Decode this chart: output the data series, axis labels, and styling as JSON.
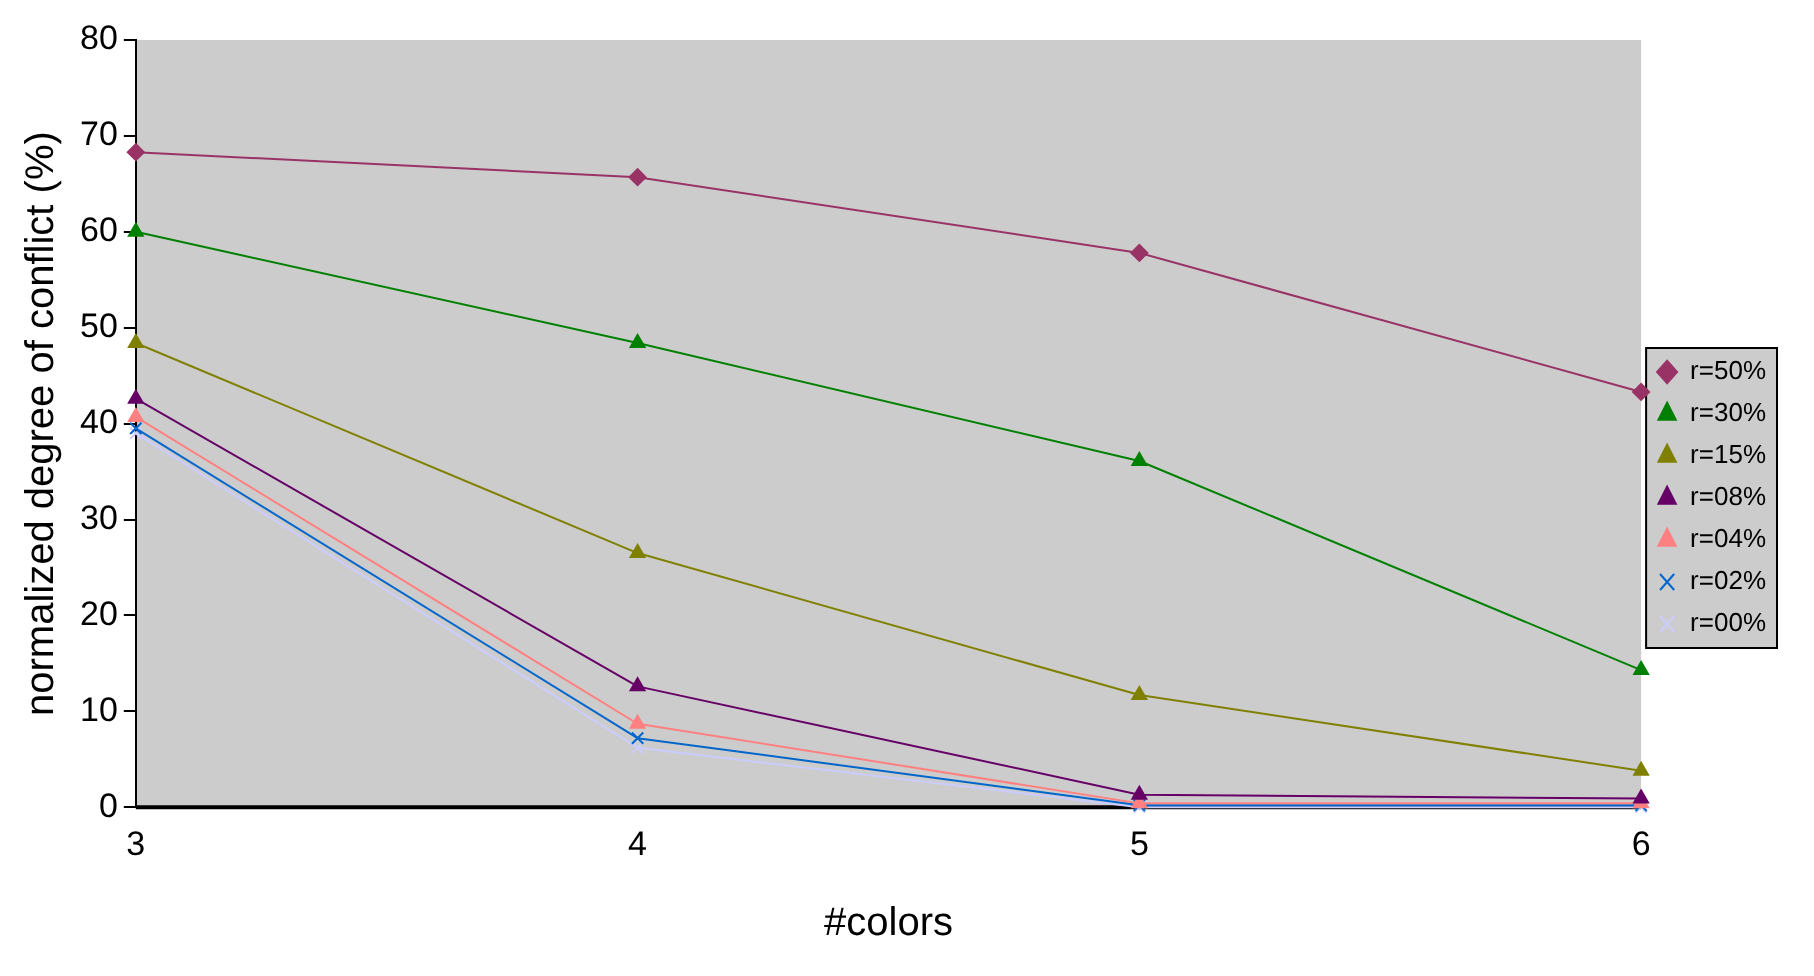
{
  "chart_data": {
    "type": "line",
    "xlabel": "#colors",
    "ylabel": "normalized degree of conflict (%)",
    "x": [
      3,
      4,
      5,
      6
    ],
    "xlim": [
      3,
      6
    ],
    "xticks": [
      3,
      4,
      5,
      6
    ],
    "ylim": [
      0,
      80
    ],
    "yticks": [
      0,
      10,
      20,
      30,
      40,
      50,
      60,
      70,
      80
    ],
    "grid": false,
    "legend": "right",
    "series": [
      {
        "name": "r=50%",
        "color": "#993366",
        "marker": "diamond",
        "values": [
          68.3,
          65.7,
          57.8,
          43.3
        ]
      },
      {
        "name": "r=30%",
        "color": "#008000",
        "marker": "triangle",
        "values": [
          60,
          48.4,
          36.1,
          14.3
        ]
      },
      {
        "name": "r=15%",
        "color": "#808000",
        "marker": "triangle",
        "values": [
          48.4,
          26.5,
          11.7,
          3.8
        ]
      },
      {
        "name": "r=08%",
        "color": "#660066",
        "marker": "triangle",
        "values": [
          42.6,
          12.6,
          1.3,
          0.9
        ]
      },
      {
        "name": "r=04%",
        "color": "#ff8080",
        "marker": "triangle",
        "values": [
          40.7,
          8.7,
          0.4,
          0.4
        ]
      },
      {
        "name": "r=02%",
        "color": "#0066cc",
        "marker": "cross",
        "values": [
          39.5,
          7.2,
          0.2,
          0.2
        ]
      },
      {
        "name": "r=00%",
        "color": "#ccccff",
        "marker": "cross",
        "values": [
          39,
          6.2,
          0,
          0
        ]
      }
    ]
  }
}
